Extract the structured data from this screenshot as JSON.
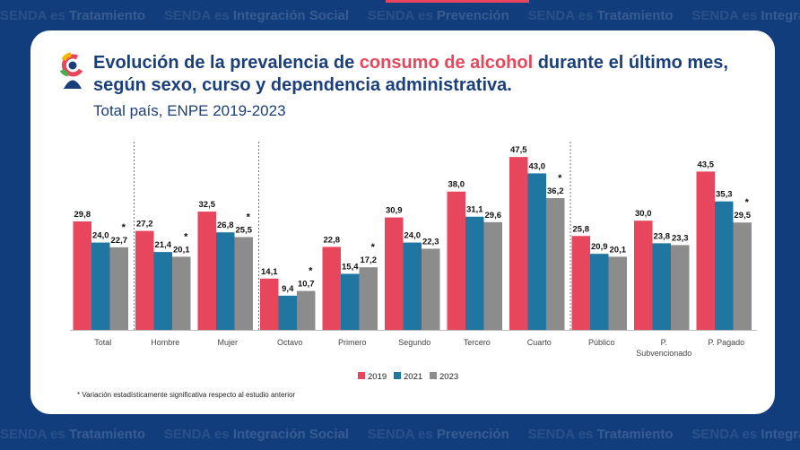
{
  "background": {
    "prefix_word": "SENDA es",
    "band_phrases": [
      "Tratamiento",
      "Integración Social",
      "Prevención"
    ],
    "color": "#123d7c"
  },
  "header": {
    "title_before": "Evolución de la prevalencia de ",
    "title_highlight": "consumo de alcohol",
    "title_after": " durante el último mes, según sexo, curso y dependencia administrativa.",
    "subtitle": "Total país, ENPE 2019-2023",
    "logo_icon": "senda-logo-icon"
  },
  "colors": {
    "2019": "#e8465c",
    "2021": "#1f76a0",
    "2023": "#8c8c8c",
    "title": "#1b3f7a",
    "accent": "#e8465c"
  },
  "chart_data": {
    "type": "bar",
    "categories": [
      "Total",
      "Hombre",
      "Mujer",
      "Octavo",
      "Primero",
      "Segundo",
      "Tercero",
      "Cuarto",
      "Público",
      "P. Subvencionado",
      "P. Pagado"
    ],
    "series": [
      {
        "name": "2019",
        "values": [
          29.8,
          27.2,
          32.5,
          14.1,
          22.8,
          30.9,
          38.0,
          47.5,
          25.8,
          30.0,
          43.5
        ]
      },
      {
        "name": "2021",
        "values": [
          24.0,
          21.4,
          26.8,
          9.4,
          15.4,
          24.0,
          31.1,
          43.0,
          20.9,
          23.8,
          35.3
        ]
      },
      {
        "name": "2023",
        "values": [
          22.7,
          20.1,
          25.5,
          10.7,
          17.2,
          22.3,
          29.6,
          36.2,
          20.1,
          23.3,
          29.5
        ]
      }
    ],
    "data_labels": [
      [
        "29,8",
        "27,2",
        "32,5",
        "14,1",
        "22,8",
        "30,9",
        "38,0",
        "47,5",
        "25,8",
        "30,0",
        "43,5"
      ],
      [
        "24,0",
        "21,4",
        "26,8",
        "9,4",
        "15,4",
        "24,0",
        "31,1",
        "43,0",
        "20,9",
        "23,8",
        "35,3"
      ],
      [
        "22,7",
        "20,1",
        "25,5",
        "10,7",
        "17,2",
        "22,3",
        "29,6",
        "36,2",
        "20,1",
        "23,3",
        "29,5"
      ]
    ],
    "significance_marker": "*",
    "significant_2023": [
      true,
      true,
      true,
      true,
      true,
      false,
      false,
      true,
      false,
      false,
      true
    ],
    "group_separators_after": [
      "Total",
      "Mujer",
      "Cuarto"
    ],
    "legend_position": "bottom-center",
    "grid": false,
    "ylim": [
      0,
      50
    ]
  },
  "footnote": "* Variación estadísticamente significativa respecto al estudio anterior"
}
